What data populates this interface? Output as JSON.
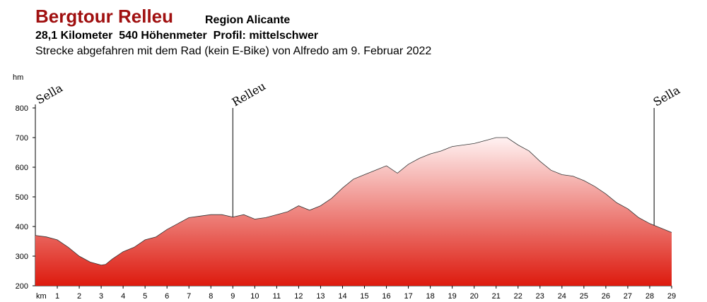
{
  "header": {
    "title": "Bergtour Relleu",
    "region": "Region Alicante",
    "stats": "28,1 Kilometer  540 Höhenmeter  Profil: mittelschwer",
    "description": "Strecke abgefahren mit dem Rad (kein E-Bike) von Alfredo am 9. Februar 2022"
  },
  "colors": {
    "title": "#a01010",
    "fill_top": "#fff2f2",
    "fill_bottom": "#dd1a0e",
    "outline": "#333333"
  },
  "chart_data": {
    "type": "area",
    "ylabel": "hm",
    "xlabel": "km",
    "ylim": [
      200,
      800
    ],
    "xlim": [
      0,
      29
    ],
    "yticks": [
      200,
      300,
      400,
      500,
      600,
      700,
      800
    ],
    "xticks": [
      1,
      2,
      3,
      4,
      5,
      6,
      7,
      8,
      9,
      10,
      11,
      12,
      13,
      14,
      15,
      16,
      17,
      18,
      19,
      20,
      21,
      22,
      23,
      24,
      25,
      26,
      27,
      28,
      29
    ],
    "x": [
      0,
      0.5,
      1,
      1.5,
      2,
      2.5,
      3,
      3.2,
      3.5,
      4,
      4.5,
      5,
      5.5,
      6,
      6.5,
      7,
      7.5,
      8,
      8.5,
      9,
      9.5,
      10,
      10.5,
      11,
      11.5,
      12,
      12.5,
      13,
      13.5,
      14,
      14.5,
      15,
      15.5,
      16,
      16.5,
      17,
      17.5,
      18,
      18.5,
      19,
      19.5,
      20,
      20.5,
      21,
      21.5,
      22,
      22.5,
      23,
      23.5,
      24,
      24.5,
      25,
      25.5,
      26,
      26.5,
      27,
      27.5,
      28,
      28.5,
      29
    ],
    "y": [
      370,
      365,
      355,
      330,
      300,
      280,
      270,
      272,
      290,
      315,
      330,
      355,
      365,
      390,
      410,
      430,
      435,
      440,
      440,
      432,
      440,
      425,
      430,
      440,
      450,
      470,
      455,
      470,
      495,
      530,
      560,
      575,
      590,
      605,
      580,
      610,
      630,
      645,
      655,
      670,
      675,
      680,
      690,
      700,
      700,
      675,
      655,
      620,
      590,
      575,
      570,
      555,
      535,
      510,
      480,
      460,
      430,
      410,
      395,
      380
    ],
    "annotations": [
      {
        "label": "Sella",
        "x": 0
      },
      {
        "label": "Relleu",
        "x": 9
      },
      {
        "label": "Sella",
        "x": 28.2
      }
    ]
  }
}
